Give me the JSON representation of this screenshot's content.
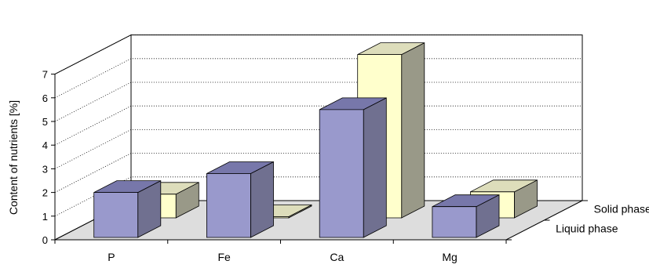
{
  "chart_data": {
    "type": "bar",
    "subtype": "3d-column",
    "categories": [
      "P",
      "Fe",
      "Ca",
      "Mg"
    ],
    "series": [
      {
        "name": "Liquid phase",
        "values": [
          1.9,
          2.7,
          5.4,
          1.3
        ],
        "color": "#9999cc"
      },
      {
        "name": "Solid phase",
        "values": [
          1.0,
          0.05,
          6.9,
          1.1
        ],
        "color": "#ffffcc"
      }
    ],
    "ylabel": "Content of nutrients [%]",
    "xlabel": "",
    "ylim": [
      0,
      7
    ],
    "yticks": [
      0,
      1,
      2,
      3,
      4,
      5,
      6,
      7
    ],
    "grid": true,
    "legend": "none",
    "colors": {
      "liquid_side": "#707090",
      "liquid_top": "#7777aa",
      "solid_side": "#999988",
      "solid_top": "#ddddbb",
      "floor": "#dddddd"
    }
  }
}
